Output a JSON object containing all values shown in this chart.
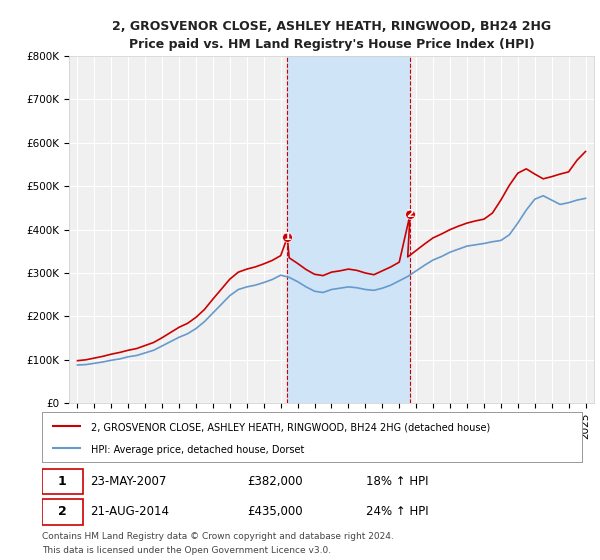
{
  "title": "2, GROSVENOR CLOSE, ASHLEY HEATH, RINGWOOD, BH24 2HG",
  "subtitle": "Price paid vs. HM Land Registry's House Price Index (HPI)",
  "xlabel": "",
  "ylabel": "",
  "ylim": [
    0,
    800000
  ],
  "yticks": [
    0,
    100000,
    200000,
    300000,
    400000,
    500000,
    600000,
    700000,
    800000
  ],
  "ytick_labels": [
    "£0",
    "£100K",
    "£200K",
    "£300K",
    "£400K",
    "£500K",
    "£600K",
    "£700K",
    "£800K"
  ],
  "xlim_start": 1994.5,
  "xlim_end": 2025.5,
  "background_color": "#ffffff",
  "plot_bg_color": "#f0f0f0",
  "grid_color": "#ffffff",
  "shade_color": "#d0e4f7",
  "sale1_x": 2007.39,
  "sale1_y": 382000,
  "sale2_x": 2014.64,
  "sale2_y": 435000,
  "sale1_label": "23-MAY-2007",
  "sale1_price": "£382,000",
  "sale1_pct": "18% ↑ HPI",
  "sale2_label": "21-AUG-2014",
  "sale2_price": "£435,000",
  "sale2_pct": "24% ↑ HPI",
  "red_line_color": "#cc0000",
  "blue_line_color": "#6699cc",
  "marker_color": "#cc0000",
  "marker_border_color": "#cc0000",
  "legend1": "2, GROSVENOR CLOSE, ASHLEY HEATH, RINGWOOD, BH24 2HG (detached house)",
  "legend2": "HPI: Average price, detached house, Dorset",
  "footer1": "Contains HM Land Registry data © Crown copyright and database right 2024.",
  "footer2": "This data is licensed under the Open Government Licence v3.0.",
  "hpi_years": [
    1995,
    1995.5,
    1996,
    1996.5,
    1997,
    1997.5,
    1998,
    1998.5,
    1999,
    1999.5,
    2000,
    2000.5,
    2001,
    2001.5,
    2002,
    2002.5,
    2003,
    2003.5,
    2004,
    2004.5,
    2005,
    2005.5,
    2006,
    2006.5,
    2007,
    2007.5,
    2008,
    2008.5,
    2009,
    2009.5,
    2010,
    2010.5,
    2011,
    2011.5,
    2012,
    2012.5,
    2013,
    2013.5,
    2014,
    2014.5,
    2015,
    2015.5,
    2016,
    2016.5,
    2017,
    2017.5,
    2018,
    2018.5,
    2019,
    2019.5,
    2020,
    2020.5,
    2021,
    2021.5,
    2022,
    2022.5,
    2023,
    2023.5,
    2024,
    2024.5,
    2025
  ],
  "hpi_values": [
    88000,
    89000,
    92000,
    95000,
    99000,
    102000,
    107000,
    110000,
    116000,
    122000,
    132000,
    142000,
    152000,
    160000,
    172000,
    188000,
    208000,
    228000,
    248000,
    262000,
    268000,
    272000,
    278000,
    285000,
    295000,
    290000,
    280000,
    268000,
    258000,
    255000,
    262000,
    265000,
    268000,
    266000,
    262000,
    260000,
    265000,
    272000,
    282000,
    292000,
    305000,
    318000,
    330000,
    338000,
    348000,
    355000,
    362000,
    365000,
    368000,
    372000,
    375000,
    388000,
    415000,
    445000,
    470000,
    478000,
    468000,
    458000,
    462000,
    468000,
    472000
  ],
  "prop_years": [
    1995,
    1995.5,
    1996,
    1996.5,
    1997,
    1997.5,
    1998,
    1998.5,
    1999,
    1999.5,
    2000,
    2000.5,
    2001,
    2001.5,
    2002,
    2002.5,
    2003,
    2003.5,
    2004,
    2004.5,
    2005,
    2005.5,
    2006,
    2006.5,
    2007,
    2007.39,
    2007.5,
    2008,
    2008.5,
    2009,
    2009.5,
    2010,
    2010.5,
    2011,
    2011.5,
    2012,
    2012.5,
    2013,
    2013.5,
    2014,
    2014.64,
    2014.5,
    2015,
    2015.5,
    2016,
    2016.5,
    2017,
    2017.5,
    2018,
    2018.5,
    2019,
    2019.5,
    2020,
    2020.5,
    2021,
    2021.5,
    2022,
    2022.5,
    2023,
    2023.5,
    2024,
    2024.5,
    2025
  ],
  "prop_values": [
    98000,
    100000,
    104000,
    108000,
    113000,
    117000,
    122000,
    126000,
    133000,
    140000,
    151000,
    163000,
    175000,
    184000,
    198000,
    216000,
    240000,
    263000,
    286000,
    302000,
    309000,
    314000,
    321000,
    329000,
    340000,
    382000,
    335000,
    322000,
    308000,
    297000,
    294000,
    302000,
    305000,
    309000,
    306000,
    300000,
    296000,
    305000,
    314000,
    325000,
    435000,
    337000,
    352000,
    367000,
    381000,
    390000,
    400000,
    408000,
    415000,
    420000,
    424000,
    438000,
    468000,
    502000,
    530000,
    540000,
    528000,
    517000,
    522000,
    528000,
    533000,
    560000,
    580000
  ],
  "xtick_years": [
    1995,
    1996,
    1997,
    1998,
    1999,
    2000,
    2001,
    2002,
    2003,
    2004,
    2005,
    2006,
    2007,
    2008,
    2009,
    2010,
    2011,
    2012,
    2013,
    2014,
    2015,
    2016,
    2017,
    2018,
    2019,
    2020,
    2021,
    2022,
    2023,
    2024,
    2025
  ]
}
